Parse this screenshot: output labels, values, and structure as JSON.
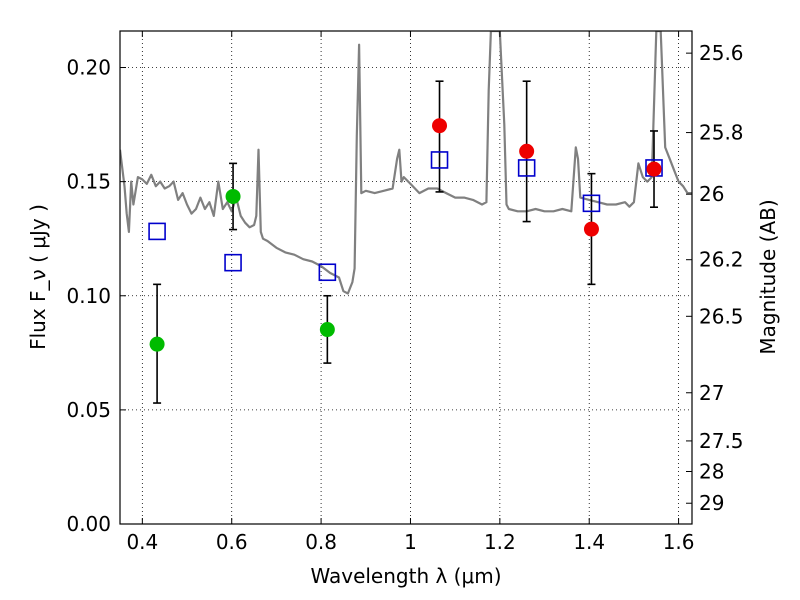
{
  "chart_data": {
    "type": "scatter",
    "xlabel": "Wavelength  λ (μm)",
    "ylabel": "Flux  F_ν  ( μJy )",
    "y2label": "Magnitude (AB)",
    "xlim": [
      0.35,
      1.63
    ],
    "ylim": [
      0.0,
      0.216
    ],
    "grid": true,
    "x_ticks": [
      0.4,
      0.6,
      0.8,
      1.0,
      1.2,
      1.4,
      1.6
    ],
    "x_tick_labels": [
      "0.4",
      "0.6",
      "0.8",
      "1",
      "1.2",
      "1.4",
      "1.6"
    ],
    "y_ticks": [
      0.0,
      0.05,
      0.1,
      0.15,
      0.2
    ],
    "y_tick_labels": [
      "0.00",
      "0.05",
      "0.10",
      "0.15",
      "0.20"
    ],
    "mag_ticks": [
      {
        "flux": 0.2063,
        "label": "25.6"
      },
      {
        "flux": 0.1715,
        "label": "25.8"
      },
      {
        "flux": 0.1445,
        "label": "26"
      },
      {
        "flux": 0.1158,
        "label": "26.2"
      },
      {
        "flux": 0.091,
        "label": "26.5"
      },
      {
        "flux": 0.0575,
        "label": "27"
      },
      {
        "flux": 0.0364,
        "label": "27.5"
      },
      {
        "flux": 0.023,
        "label": "28"
      },
      {
        "flux": 0.0091,
        "label": "29"
      }
    ],
    "series": [
      {
        "kind": "line",
        "color": "#808080",
        "x": [
          0.35,
          0.36,
          0.365,
          0.37,
          0.375,
          0.38,
          0.39,
          0.4,
          0.41,
          0.42,
          0.43,
          0.44,
          0.45,
          0.46,
          0.47,
          0.48,
          0.49,
          0.5,
          0.51,
          0.52,
          0.53,
          0.54,
          0.55,
          0.56,
          0.57,
          0.58,
          0.59,
          0.6,
          0.61,
          0.62,
          0.63,
          0.64,
          0.65,
          0.655,
          0.66,
          0.665,
          0.67,
          0.68,
          0.7,
          0.72,
          0.74,
          0.76,
          0.78,
          0.8,
          0.82,
          0.84,
          0.85,
          0.86,
          0.87,
          0.875,
          0.88,
          0.885,
          0.89,
          0.9,
          0.92,
          0.94,
          0.96,
          0.97,
          0.975,
          0.98,
          0.985,
          1.0,
          1.02,
          1.04,
          1.06,
          1.08,
          1.1,
          1.12,
          1.14,
          1.16,
          1.17,
          1.175,
          1.18,
          1.19,
          1.2,
          1.21,
          1.215,
          1.22,
          1.24,
          1.26,
          1.28,
          1.3,
          1.32,
          1.34,
          1.36,
          1.37,
          1.375,
          1.38,
          1.4,
          1.42,
          1.44,
          1.46,
          1.48,
          1.49,
          1.5,
          1.51,
          1.52,
          1.53,
          1.54,
          1.55,
          1.56,
          1.57,
          1.58,
          1.59,
          1.6,
          1.61,
          1.62,
          1.63
        ],
        "y": [
          0.164,
          0.148,
          0.136,
          0.128,
          0.15,
          0.14,
          0.152,
          0.151,
          0.149,
          0.153,
          0.148,
          0.15,
          0.147,
          0.148,
          0.15,
          0.142,
          0.145,
          0.14,
          0.136,
          0.138,
          0.143,
          0.138,
          0.141,
          0.135,
          0.15,
          0.138,
          0.141,
          0.137,
          0.143,
          0.135,
          0.132,
          0.13,
          0.131,
          0.135,
          0.164,
          0.128,
          0.125,
          0.124,
          0.121,
          0.119,
          0.118,
          0.116,
          0.115,
          0.113,
          0.11,
          0.108,
          0.102,
          0.101,
          0.106,
          0.112,
          0.17,
          0.21,
          0.145,
          0.146,
          0.145,
          0.146,
          0.147,
          0.16,
          0.164,
          0.15,
          0.152,
          0.149,
          0.145,
          0.147,
          0.147,
          0.145,
          0.143,
          0.143,
          0.142,
          0.14,
          0.141,
          0.19,
          0.216,
          0.216,
          0.216,
          0.175,
          0.14,
          0.138,
          0.137,
          0.137,
          0.138,
          0.137,
          0.137,
          0.138,
          0.137,
          0.165,
          0.16,
          0.143,
          0.142,
          0.141,
          0.14,
          0.14,
          0.141,
          0.139,
          0.141,
          0.158,
          0.152,
          0.15,
          0.152,
          0.216,
          0.216,
          0.165,
          0.16,
          0.155,
          0.15,
          0.148,
          0.145,
          0.145
        ]
      },
      {
        "kind": "errorbar-points",
        "marker": "circle",
        "color": "#00bb00",
        "x": [
          0.433,
          0.603,
          0.814
        ],
        "y": [
          0.0788,
          0.1435,
          0.0852
        ],
        "yerr_low": [
          0.053,
          0.129,
          0.0705
        ],
        "yerr_high": [
          0.105,
          0.158,
          0.1
        ],
        "show_err": [
          true,
          true,
          true
        ]
      },
      {
        "kind": "errorbar-points",
        "marker": "circle",
        "color": "#ee0000",
        "x": [
          1.065,
          1.26,
          1.405,
          1.545
        ],
        "y": [
          0.1745,
          0.1633,
          0.1292,
          0.1555
        ],
        "yerr_low": [
          0.1455,
          0.1325,
          0.105,
          0.1388
        ],
        "yerr_high": [
          0.194,
          0.194,
          0.1535,
          0.1722
        ],
        "show_err": [
          true,
          true,
          true,
          true
        ]
      },
      {
        "kind": "points",
        "marker": "square",
        "color": "#0000cc",
        "x": [
          0.433,
          0.603,
          0.814,
          1.065,
          1.26,
          1.405,
          1.545
        ],
        "y": [
          0.1282,
          0.1145,
          0.1103,
          0.1595,
          0.156,
          0.1405,
          0.156
        ]
      }
    ]
  }
}
